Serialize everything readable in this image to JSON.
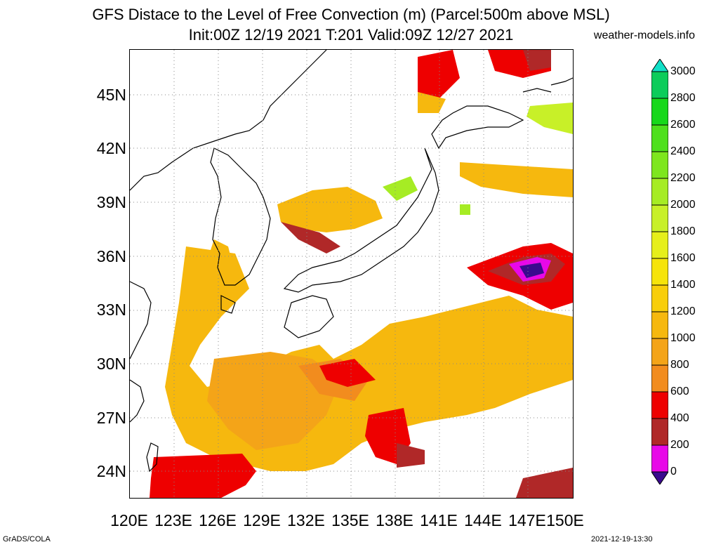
{
  "header": {
    "title_line1": "GFS Distace to the Level of Free Convection (m) (Parcel:500m above MSL)",
    "title_line2": "Init:00Z 12/19 2021 T:201 Valid:09Z 12/27 2021",
    "site": "weather-models.info"
  },
  "axes": {
    "lat_labels": [
      "45N",
      "42N",
      "39N",
      "36N",
      "33N",
      "30N",
      "27N",
      "24N"
    ],
    "lon_labels": [
      "120E",
      "123E",
      "126E",
      "129E",
      "132E",
      "135E",
      "138E",
      "141E",
      "144E",
      "147E",
      "150E"
    ],
    "lon_range": [
      120,
      150
    ],
    "lat_range": [
      22.5,
      47.5
    ],
    "gridlines": true
  },
  "colorbar": {
    "labels": [
      "3000",
      "2800",
      "2600",
      "2400",
      "2200",
      "2000",
      "1800",
      "1600",
      "1400",
      "1200",
      "1000",
      "800",
      "600",
      "400",
      "200",
      "0"
    ],
    "colors": [
      "#11e0c8",
      "#0ccc5a",
      "#16d81a",
      "#4ee01c",
      "#7ee61e",
      "#a6ec24",
      "#c8f028",
      "#e6ef1a",
      "#f6e40a",
      "#f8ce0a",
      "#f6b80e",
      "#f4a418",
      "#f28c1e",
      "#ee0000",
      "#b02828",
      "#e808e8",
      "#3a0a8e"
    ]
  },
  "footer": {
    "left": "GrADS/COLA",
    "right": "2021-12-19-13:30"
  }
}
